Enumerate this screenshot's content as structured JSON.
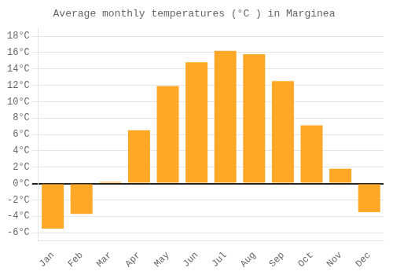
{
  "chart_data": {
    "type": "bar",
    "title": "Average monthly temperatures (°C ) in Marginea",
    "categories": [
      "Jan",
      "Feb",
      "Mar",
      "Apr",
      "May",
      "Jun",
      "Jul",
      "Aug",
      "Sep",
      "Oct",
      "Nov",
      "Dec"
    ],
    "values": [
      -5.5,
      -3.7,
      0.2,
      6.5,
      11.9,
      14.8,
      16.2,
      15.8,
      12.5,
      7.1,
      1.8,
      -3.5
    ],
    "color": "#FFA726",
    "ylim": [
      -7,
      19
    ],
    "yticks": [
      {
        "value": -6,
        "label": "-6°C"
      },
      {
        "value": -4,
        "label": "-4°C"
      },
      {
        "value": -2,
        "label": "-2°C"
      },
      {
        "value": 0,
        "label": "0°C"
      },
      {
        "value": 2,
        "label": "2°C"
      },
      {
        "value": 4,
        "label": "4°C"
      },
      {
        "value": 6,
        "label": "6°C"
      },
      {
        "value": 8,
        "label": "8°C"
      },
      {
        "value": 10,
        "label": "10°C"
      },
      {
        "value": 12,
        "label": "12°C"
      },
      {
        "value": 14,
        "label": "14°C"
      },
      {
        "value": 16,
        "label": "16°C"
      },
      {
        "value": 18,
        "label": "18°C"
      }
    ],
    "grid": true
  }
}
